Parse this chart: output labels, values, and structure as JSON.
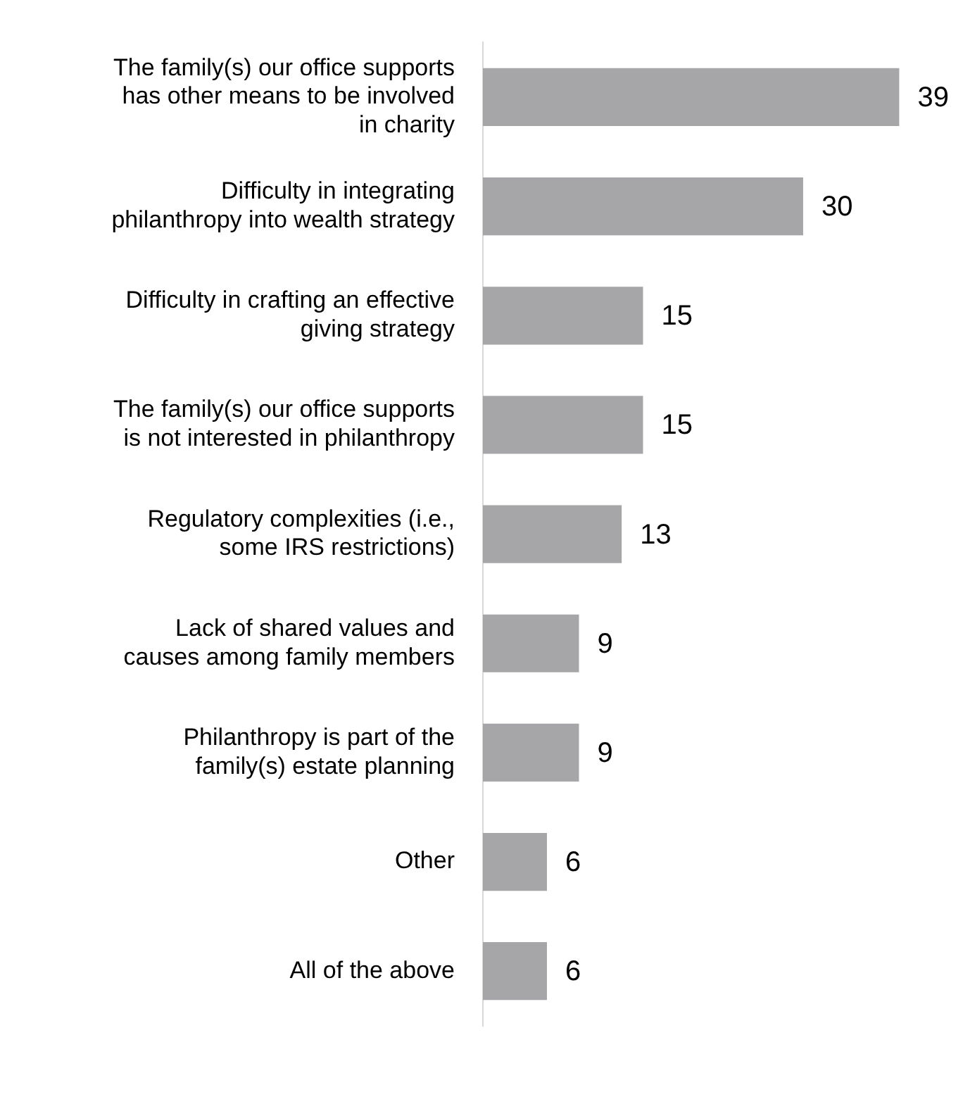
{
  "chart_data": {
    "type": "bar",
    "orientation": "horizontal",
    "data_labels": true,
    "categories": [
      "The family(s) our office supports has other means to be involved in charity",
      "Difficulty in integrating philanthropy into wealth strategy",
      "Difficulty in crafting an effective giving strategy",
      "The family(s) our office supports is not interested in philanthropy",
      "Regulatory complexities (i.e., some IRS restrictions)",
      "Lack of shared values and causes among family members",
      "Philanthropy is part of the family(s) estate planning",
      "Other",
      "All of the above"
    ],
    "values": [
      39,
      30,
      15,
      15,
      13,
      9,
      9,
      6,
      6
    ],
    "color": "#a6a5a8",
    "tick_labels": "y"
  }
}
